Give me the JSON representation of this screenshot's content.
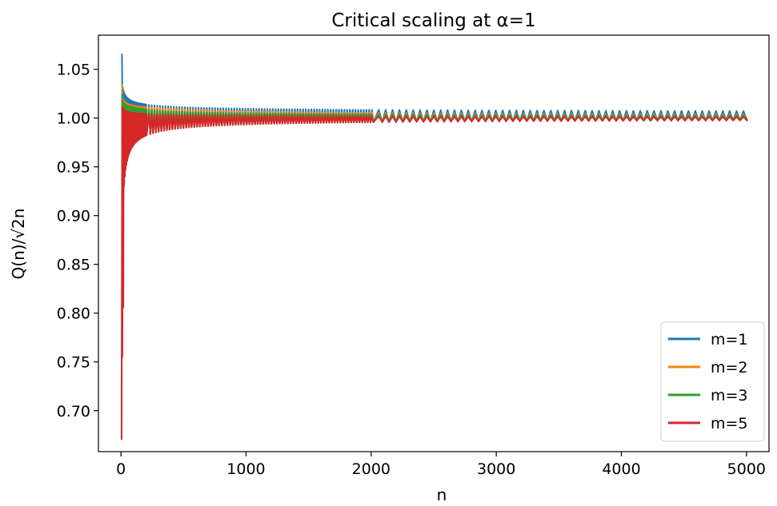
{
  "chart_data": {
    "type": "line",
    "title": "Critical scaling at α=1",
    "xlabel": "n",
    "ylabel": "Q(n)/√2n",
    "xlim": [
      -180,
      5180
    ],
    "ylim": [
      0.658,
      1.085
    ],
    "xticks": [
      0,
      1000,
      2000,
      3000,
      4000,
      5000
    ],
    "yticks": [
      0.7,
      0.75,
      0.8,
      0.85,
      0.9,
      0.95,
      1.0,
      1.05
    ],
    "xtick_labels": [
      "0",
      "1000",
      "2000",
      "3000",
      "4000",
      "5000"
    ],
    "ytick_labels": [
      "0.70",
      "0.75",
      "0.80",
      "0.85",
      "0.90",
      "0.95",
      "1.00",
      "1.05"
    ],
    "legend_position": "lower-right",
    "grid": false,
    "series": [
      {
        "name": "m=1",
        "color": "#1f77b4",
        "start_value": 1.066,
        "upper_envelope_decay": 0.066,
        "lower_envelope_depth": 0.13,
        "limit": 1.0
      },
      {
        "name": "m=2",
        "color": "#ff7f0e",
        "start_value": 1.035,
        "upper_envelope_decay": 0.035,
        "lower_envelope_depth": 0.13,
        "limit": 1.0
      },
      {
        "name": "m=3",
        "color": "#2ca02c",
        "start_value": 1.025,
        "upper_envelope_decay": 0.025,
        "lower_envelope_depth": 0.13,
        "limit": 1.0
      },
      {
        "name": "m=5",
        "color": "#d62728",
        "start_value": 0.67,
        "upper_envelope_decay": 0.012,
        "lower_envelope_depth": 0.13,
        "limit": 1.0
      }
    ]
  }
}
